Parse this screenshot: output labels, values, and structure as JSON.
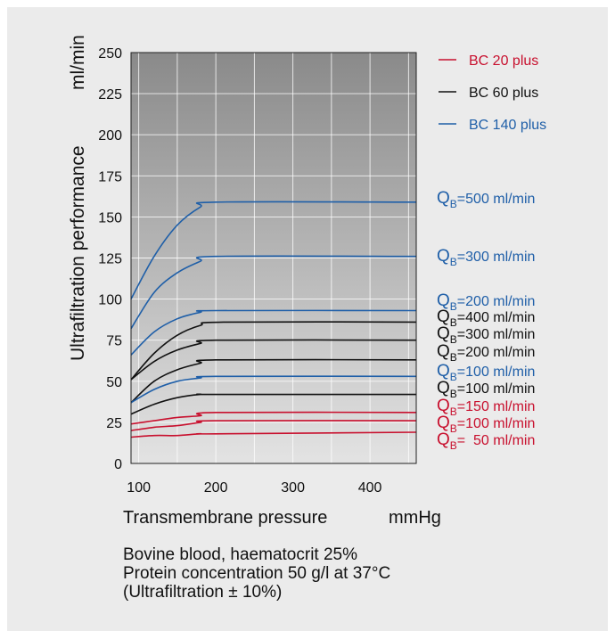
{
  "chart_data": {
    "type": "line",
    "ylabel": "Ultrafiltration performance",
    "ylabel_unit": "ml/min",
    "xlabel": "Transmembrane pressure",
    "xlabel_unit": "mmHg",
    "xlim": [
      90,
      460
    ],
    "ylim": [
      0,
      250
    ],
    "x_ticks": [
      100,
      200,
      300,
      400
    ],
    "y_ticks": [
      0,
      25,
      50,
      75,
      100,
      125,
      150,
      175,
      200,
      225,
      250
    ],
    "grid": true,
    "legend": {
      "position": "top-right",
      "entries": [
        {
          "label": "BC 20 plus",
          "color": "#c8102e"
        },
        {
          "label": "BC 60 plus",
          "color": "#111111"
        },
        {
          "label": "BC 140 plus",
          "color": "#1f5fa8"
        }
      ]
    },
    "series": [
      {
        "model": "BC 140 plus",
        "color": "#1f5fa8",
        "label_prefix": "Q",
        "label_sub": "B",
        "label_value": "=500 ml/min",
        "x": [
          90,
          120,
          150,
          180,
          200,
          460
        ],
        "y": [
          100,
          126,
          145,
          156,
          159,
          159
        ]
      },
      {
        "model": "BC 140 plus",
        "color": "#1f5fa8",
        "label_prefix": "Q",
        "label_sub": "B",
        "label_value": "=300 ml/min",
        "x": [
          90,
          120,
          150,
          180,
          200,
          460
        ],
        "y": [
          82,
          104,
          116,
          123,
          126,
          126
        ]
      },
      {
        "model": "BC 140 plus",
        "color": "#1f5fa8",
        "label_prefix": "Q",
        "label_sub": "B",
        "label_value": "=200 ml/min",
        "x": [
          90,
          120,
          150,
          180,
          200,
          460
        ],
        "y": [
          66,
          80,
          88,
          92,
          93,
          93
        ]
      },
      {
        "model": "BC 60 plus",
        "color": "#111111",
        "label_prefix": "Q",
        "label_sub": "B",
        "label_value": "=400 ml/min",
        "x": [
          90,
          120,
          150,
          180,
          210,
          460
        ],
        "y": [
          51,
          67,
          78,
          84,
          86,
          86
        ]
      },
      {
        "model": "BC 60 plus",
        "color": "#111111",
        "label_prefix": "Q",
        "label_sub": "B",
        "label_value": "=300 ml/min",
        "x": [
          90,
          120,
          150,
          180,
          200,
          460
        ],
        "y": [
          51,
          62,
          69,
          73,
          75,
          75
        ]
      },
      {
        "model": "BC 60 plus",
        "color": "#111111",
        "label_prefix": "Q",
        "label_sub": "B",
        "label_value": "=200 ml/min",
        "x": [
          90,
          120,
          150,
          180,
          200,
          460
        ],
        "y": [
          37,
          50,
          57,
          61,
          63,
          63
        ]
      },
      {
        "model": "BC 140 plus",
        "color": "#1f5fa8",
        "label_prefix": "Q",
        "label_sub": "B",
        "label_value": "=100 ml/min",
        "x": [
          90,
          120,
          150,
          180,
          200,
          460
        ],
        "y": [
          37,
          45,
          50,
          52,
          53,
          53
        ]
      },
      {
        "model": "BC 60 plus",
        "color": "#111111",
        "label_prefix": "Q",
        "label_sub": "B",
        "label_value": "=100 ml/min",
        "x": [
          90,
          120,
          150,
          180,
          200,
          460
        ],
        "y": [
          30,
          36,
          40,
          42,
          42,
          42
        ]
      },
      {
        "model": "BC 20 plus",
        "color": "#c8102e",
        "label_prefix": "Q",
        "label_sub": "B",
        "label_value": "=150 ml/min",
        "x": [
          90,
          120,
          150,
          180,
          200,
          460
        ],
        "y": [
          24,
          26,
          28,
          29,
          31,
          31
        ]
      },
      {
        "model": "BC 20 plus",
        "color": "#c8102e",
        "label_prefix": "Q",
        "label_sub": "B",
        "label_value": "=100 ml/min",
        "x": [
          90,
          120,
          150,
          180,
          200,
          460
        ],
        "y": [
          20,
          22,
          23,
          25,
          26,
          26
        ]
      },
      {
        "model": "BC 20 plus",
        "color": "#c8102e",
        "label_prefix": "Q",
        "label_sub": "B",
        "label_value": "=  50 ml/min",
        "x": [
          90,
          120,
          150,
          180,
          200,
          460
        ],
        "y": [
          16,
          17,
          17,
          18,
          18,
          19
        ]
      }
    ]
  },
  "notes": [
    "Bovine blood, haematocrit 25%",
    "Protein concentration 50  g/l at 37°C",
    "(Ultrafiltration ± 10%)"
  ]
}
